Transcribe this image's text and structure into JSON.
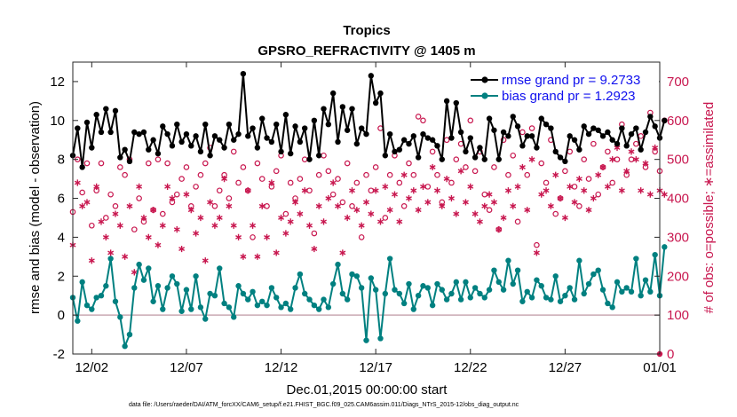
{
  "chart_data": {
    "type": "line",
    "title": "Tropics",
    "subtitle": "GPSRO_REFRACTIVITY @ 1405 m",
    "xlabel": "Dec.01,2015 00:00:00 start",
    "ylabel": "rmse and bias (model - observation)",
    "y2label": "# of obs: o=possible; ∗=assimilated",
    "xlim": [
      0,
      31
    ],
    "ylim": [
      -2,
      13
    ],
    "y2lim": [
      0,
      750
    ],
    "x_tick_values": [
      1,
      6,
      11,
      16,
      21,
      26,
      31
    ],
    "x_tick_labels": [
      "12/02",
      "12/07",
      "12/12",
      "12/17",
      "12/22",
      "12/27",
      "01/01"
    ],
    "y_ticks": [
      "-2",
      "0",
      "2",
      "4",
      "6",
      "8",
      "10",
      "12"
    ],
    "y2_ticks": [
      "0",
      "100",
      "200",
      "300",
      "400",
      "500",
      "600",
      "700"
    ],
    "legend": [
      "rmse grand pr = 9.2733",
      "bias grand pr = 1.2923"
    ],
    "footnote": "data file: /Users/raeder/DAI/ATM_forcXX/CAM6_setup/f.e21.FHIST_BGC.f09_025.CAM6assim.011/Diags_NTrS_2015-12/obs_diag_output.nc",
    "colors": {
      "rmse": "#000000",
      "bias": "#008080",
      "obs": "#c8174f",
      "zero_line": "#c9a9b2"
    },
    "series": [
      {
        "name": "rmse",
        "x_start": 0,
        "x_step": 0.25,
        "values": [
          8.2,
          9.6,
          7.6,
          9.9,
          8.6,
          10.3,
          9.4,
          10.6,
          9.4,
          10.5,
          8.1,
          8.5,
          7.9,
          9.4,
          9.3,
          9.4,
          8.5,
          9.0,
          8.3,
          9.7,
          9.3,
          8.7,
          9.8,
          8.9,
          9.3,
          8.7,
          9.2,
          8.4,
          9.8,
          8.2,
          9.2,
          9.0,
          8.6,
          9.8,
          9.0,
          9.3,
          12.4,
          9.2,
          9.6,
          8.6,
          10.1,
          9.1,
          8.9,
          9.8,
          8.4,
          10.3,
          8.3,
          9.7,
          8.9,
          9.6,
          8.0,
          10.0,
          8.2,
          10.6,
          9.8,
          11.4,
          8.9,
          10.7,
          9.5,
          10.6,
          8.8,
          9.6,
          9.3,
          12.3,
          10.9,
          11.4,
          8.2,
          9.3,
          8.4,
          8.5,
          9.0,
          8.8,
          9.2,
          8.1,
          9.3,
          9.1,
          9.0,
          8.7,
          8.0,
          11.0,
          9.1,
          10.9,
          9.4,
          8.4,
          9.1,
          8.1,
          8.6,
          8.0,
          10.1,
          9.5,
          8.0,
          9.4,
          9.2,
          10.2,
          9.7,
          8.7,
          9.2,
          9.2,
          8.6,
          10.1,
          9.8,
          9.6,
          8.4,
          8.1,
          7.9,
          9.2,
          9.0,
          8.5,
          9.7,
          9.3,
          9.6,
          9.5,
          9.2,
          9.4,
          9.0,
          8.8,
          9.6,
          8.7,
          9.3,
          9.6,
          8.5,
          9.4,
          10.2,
          9.7,
          9.1,
          10.0
        ]
      },
      {
        "name": "bias",
        "x_start": 0,
        "x_step": 0.25,
        "values": [
          0.9,
          -0.3,
          1.7,
          0.5,
          0.3,
          0.9,
          1.0,
          1.5,
          2.9,
          0.7,
          -0.1,
          -1.6,
          -1.0,
          1.4,
          2.6,
          1.8,
          2.4,
          0.7,
          1.5,
          0.3,
          1.4,
          2.0,
          1.6,
          0.2,
          1.3,
          0.3,
          2.0,
          0.4,
          -0.2,
          1.1,
          1.0,
          2.4,
          0.6,
          0.4,
          -0.1,
          1.5,
          1.1,
          0.8,
          1.2,
          0.5,
          0.7,
          0.5,
          1.4,
          0.9,
          0.4,
          0.6,
          0.3,
          1.4,
          2.1,
          1.1,
          0.8,
          0.5,
          0.3,
          0.8,
          0.4,
          1.6,
          2.6,
          1.1,
          0.8,
          2.1,
          2.0,
          1.4,
          -1.3,
          1.9,
          1.3,
          -1.2,
          1.1,
          2.9,
          1.3,
          1.1,
          0.6,
          1.6,
          0.3,
          1.0,
          1.5,
          1.4,
          0.5,
          1.6,
          1.3,
          0.8,
          1.1,
          1.7,
          0.8,
          1.7,
          0.9,
          1.4,
          1.1,
          0.9,
          1.3,
          2.3,
          1.7,
          1.3,
          2.8,
          1.6,
          2.3,
          0.7,
          1.2,
          0.9,
          1.8,
          1.5,
          0.9,
          0.8,
          2.0,
          0.7,
          1.0,
          1.4,
          0.8,
          2.8,
          1.1,
          1.6,
          2.1,
          2.3,
          1.3,
          0.6,
          0.4,
          1.7,
          1.2,
          1.4,
          1.2,
          2.9,
          1.0,
          1.8,
          1.2,
          3.1,
          1.0,
          3.5
        ]
      },
      {
        "name": "obs possible",
        "marker": "o",
        "x_start": 0,
        "x_step": 0.25,
        "values": [
          365,
          500,
          415,
          490,
          330,
          420,
          490,
          350,
          410,
          380,
          480,
          460,
          500,
          320,
          400,
          340,
          490,
          370,
          500,
          360,
          490,
          390,
          410,
          450,
          480,
          380,
          430,
          460,
          490,
          530,
          380,
          420,
          460,
          400,
          520,
          440,
          480,
          420,
          300,
          490,
          450,
          380,
          430,
          470,
          510,
          360,
          440,
          400,
          450,
          500,
          420,
          310,
          460,
          510,
          470,
          410,
          450,
          390,
          490,
          380,
          440,
          300,
          460,
          420,
          480,
          580,
          350,
          460,
          510,
          440,
          380,
          490,
          460,
          610,
          600,
          430,
          520,
          460,
          390,
          550,
          440,
          500,
          540,
          480,
          600,
          470,
          520,
          410,
          370,
          480,
          320,
          550,
          460,
          510,
          340,
          570,
          460,
          580,
          280,
          490,
          440,
          550,
          360,
          400,
          470,
          520,
          430,
          380,
          500,
          450,
          540,
          410,
          480,
          520,
          440,
          500,
          590,
          460,
          500,
          540,
          560,
          480,
          620,
          520,
          470,
          600
        ]
      },
      {
        "name": "obs assimilated",
        "marker": "*",
        "x_start": 0,
        "x_step": 0.25,
        "values": [
          280,
          440,
          380,
          390,
          240,
          430,
          340,
          300,
          260,
          360,
          330,
          250,
          380,
          210,
          430,
          350,
          300,
          370,
          280,
          330,
          430,
          400,
          320,
          270,
          410,
          370,
          310,
          350,
          240,
          390,
          330,
          350,
          450,
          380,
          330,
          300,
          250,
          420,
          330,
          250,
          380,
          300,
          440,
          260,
          350,
          310,
          340,
          390,
          360,
          420,
          330,
          270,
          380,
          340,
          400,
          440,
          380,
          260,
          350,
          420,
          370,
          330,
          390,
          360,
          420,
          340,
          430,
          370,
          410,
          340,
          460,
          400,
          420,
          370,
          430,
          390,
          480,
          420,
          380,
          450,
          400,
          360,
          470,
          390,
          430,
          360,
          340,
          380,
          410,
          390,
          320,
          350,
          420,
          380,
          430,
          480,
          370,
          500,
          260,
          410,
          420,
          380,
          460,
          400,
          350,
          430,
          390,
          450,
          420,
          370,
          400,
          460,
          480,
          430,
          500,
          530,
          420,
          470,
          520,
          500,
          420,
          490,
          410,
          530,
          420,
          410
        ]
      }
    ]
  }
}
